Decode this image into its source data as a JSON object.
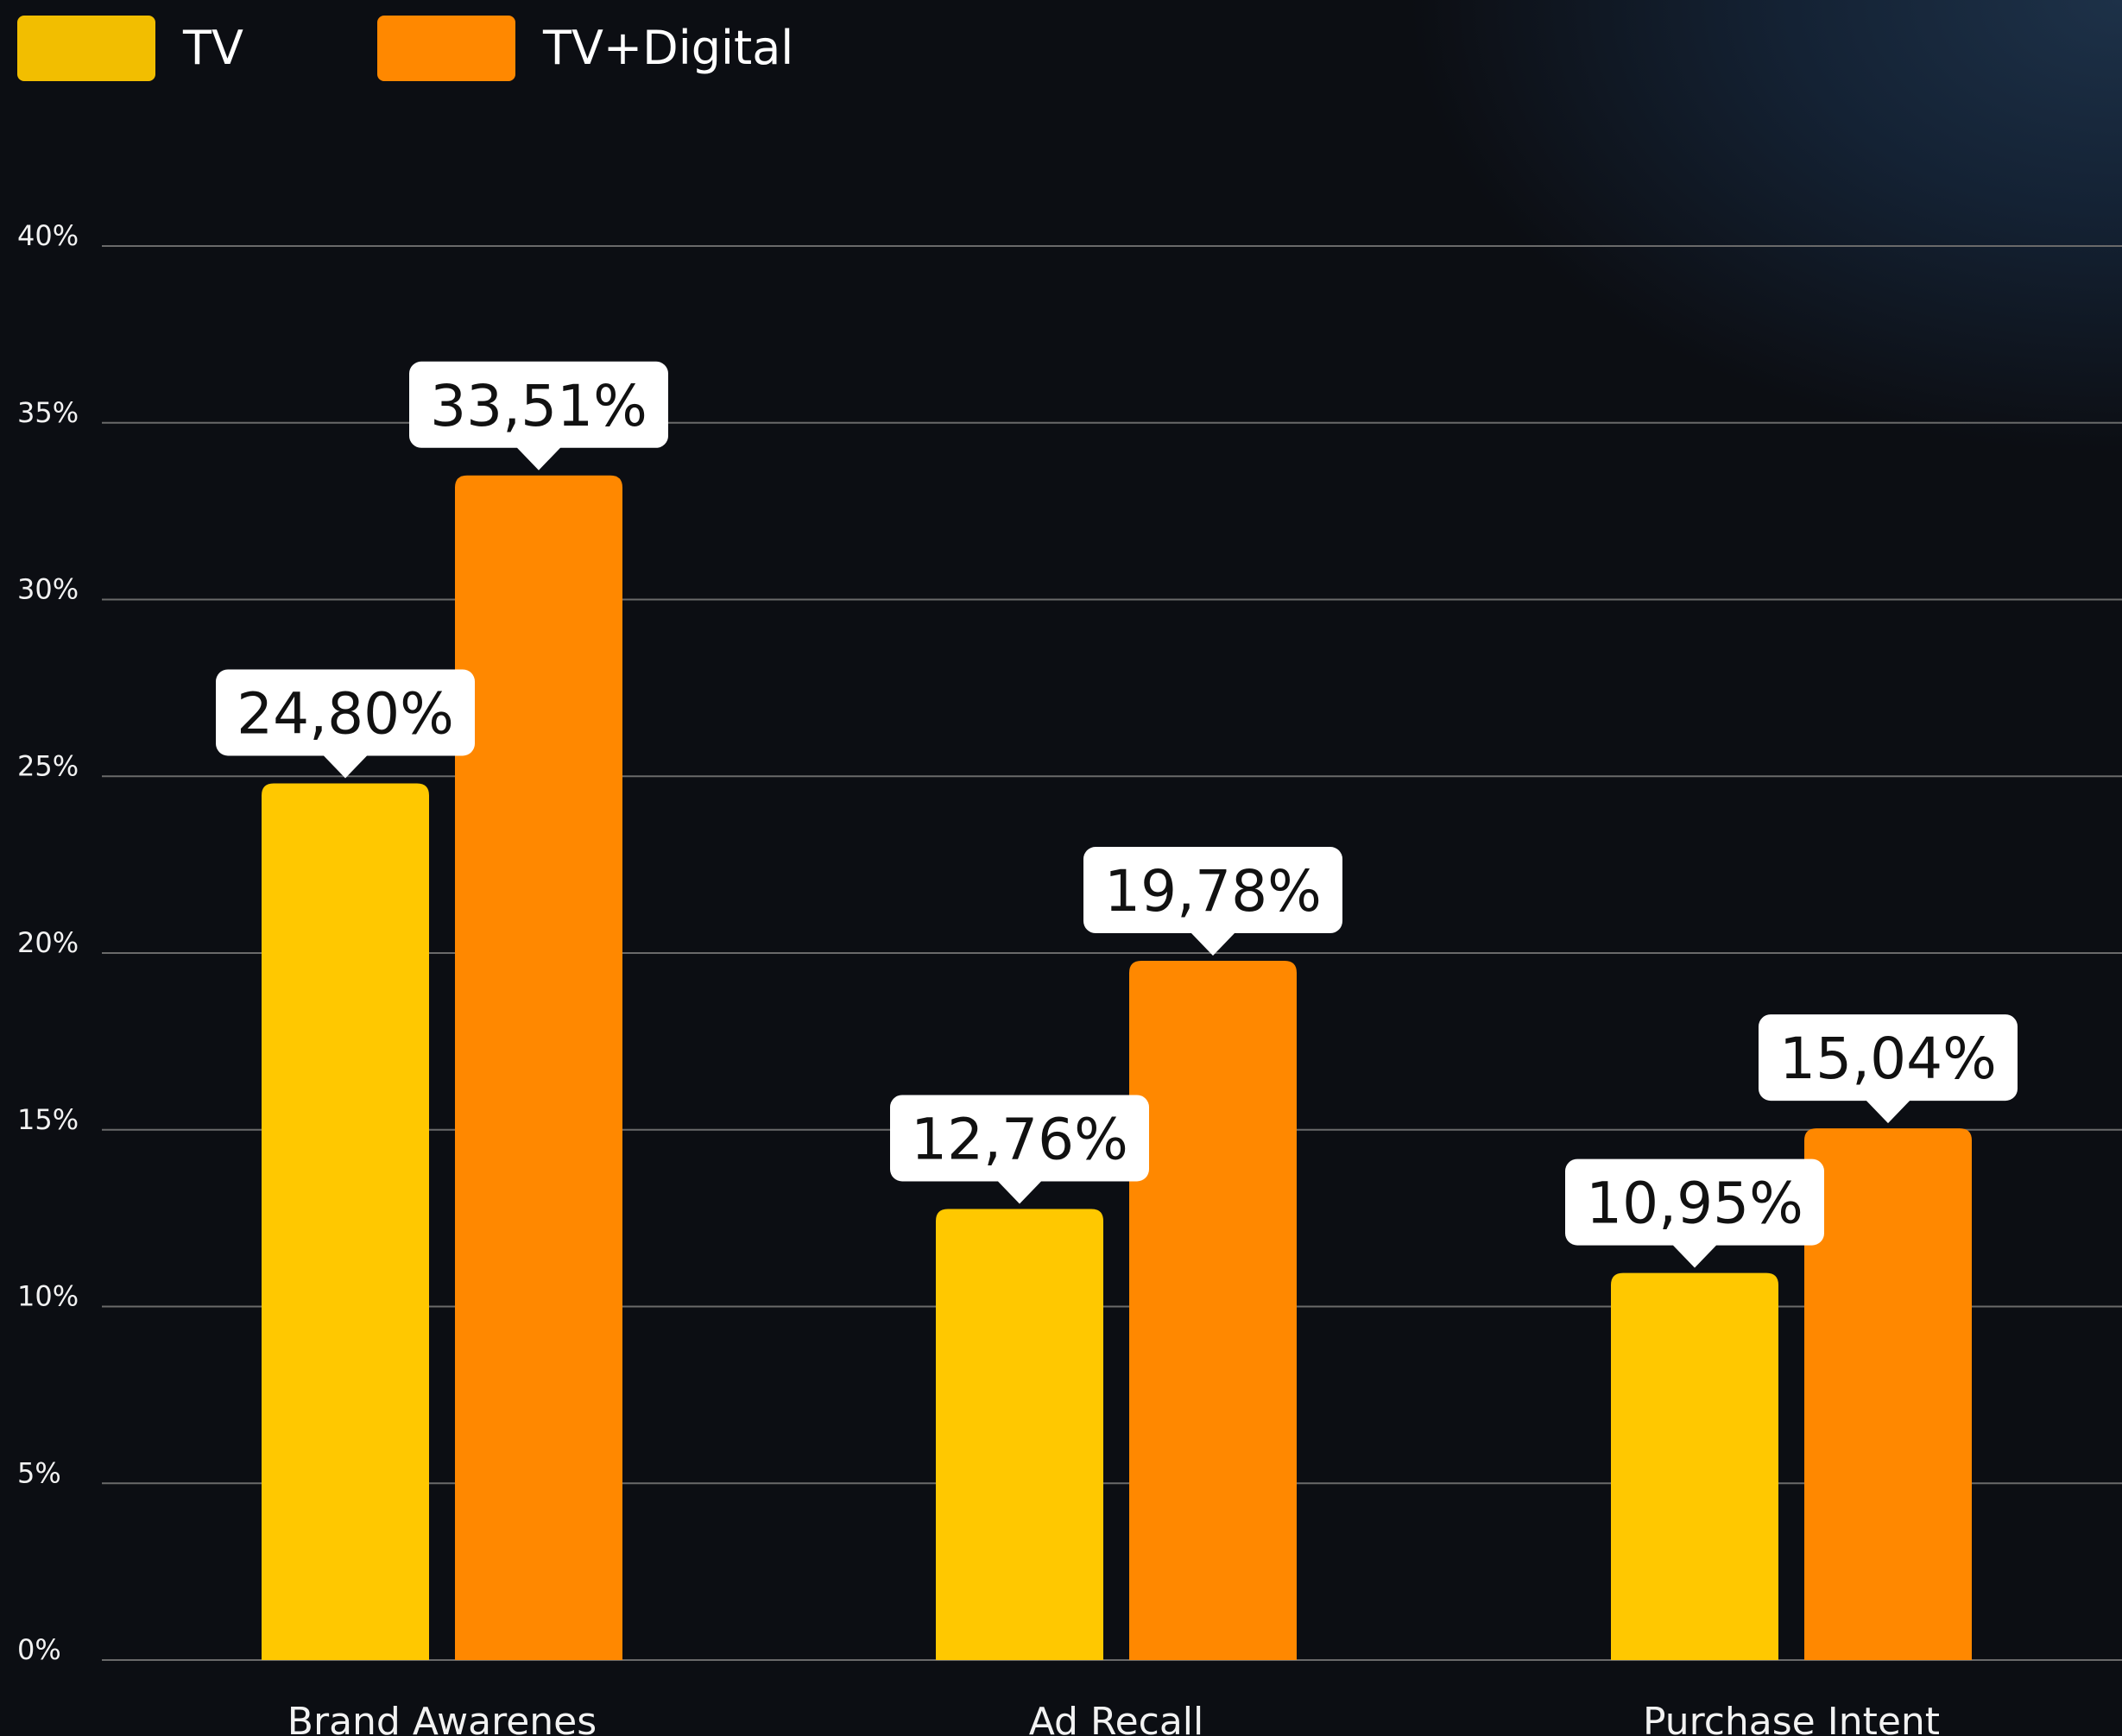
{
  "chart_data": {
    "type": "bar",
    "categories": [
      "Brand Awarenes",
      "Ad Recall",
      "Purchase Intent"
    ],
    "series": [
      {
        "name": "TV",
        "color": "#FFC800",
        "values": [
          24.8,
          12.76,
          10.95
        ],
        "labels": [
          "24,80%",
          "12,76%",
          "10,95%"
        ]
      },
      {
        "name": "TV+Digital",
        "color": "#FF8800",
        "values": [
          33.51,
          19.78,
          15.04
        ],
        "labels": [
          "33,51%",
          "19,78%",
          "15,04%"
        ]
      }
    ],
    "ylim": [
      0,
      40
    ],
    "yticks": [
      "0%",
      "5%",
      "10%",
      "15%",
      "20%",
      "25%",
      "30%",
      "35%",
      "40%"
    ],
    "grid": true,
    "legend": "top-left",
    "legend_colors": {
      "TV": "#F2BE00",
      "TV+Digital": "#FF8800"
    }
  }
}
